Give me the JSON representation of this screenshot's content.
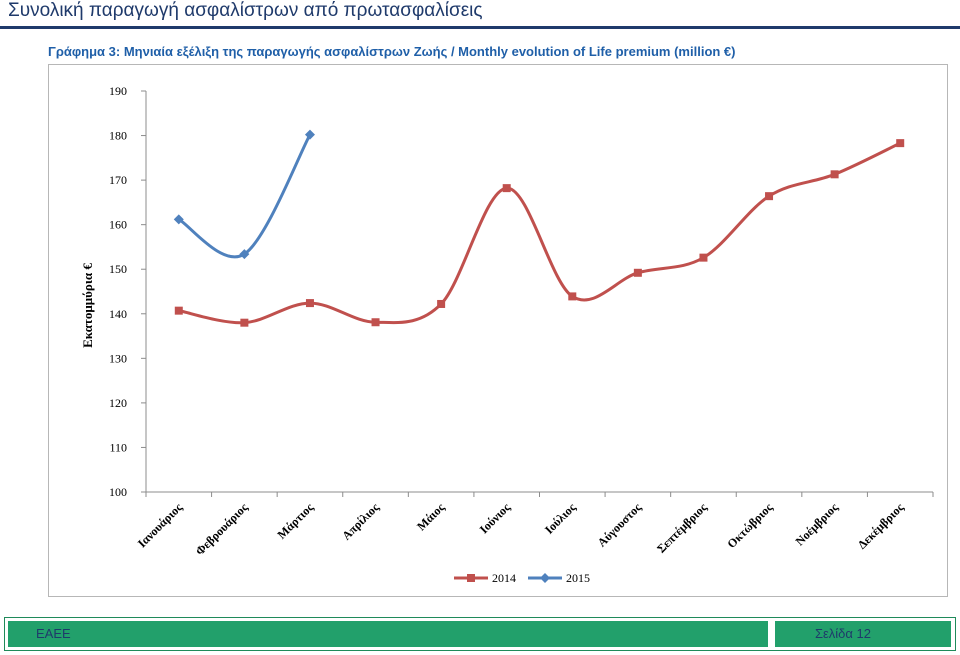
{
  "header": {
    "title": "Συνολική παραγωγή ασφαλίστρων από πρωτασφαλίσεις"
  },
  "chart_data": {
    "type": "line",
    "title": "Γράφημα 3: Μηνιαία εξέλιξη της παραγωγής ασφαλίστρων Ζωής / Monthly evolution of Life premium (million €)",
    "ylabel": "Εκατομμύρια €",
    "xlabel": "",
    "ylim": [
      100,
      190
    ],
    "yticks": [
      100,
      110,
      120,
      130,
      140,
      150,
      160,
      170,
      180,
      190
    ],
    "grid": false,
    "legend": "bottom",
    "categories": [
      "Ιανουάριος",
      "Φεβρουάριος",
      "Μάρτιος",
      "Απρίλιος",
      "Μάιος",
      "Ιούνιος",
      "Ιούλιος",
      "Αύγουστος",
      "Σεπτέμβριος",
      "Οκτώβριος",
      "Νοέμβριος",
      "Δεκέμβριος"
    ],
    "series": [
      {
        "name": "2014",
        "color": "#c0504d",
        "marker": "square",
        "values": [
          140.7,
          138.0,
          142.4,
          138.1,
          142.2,
          168.2,
          143.9,
          149.2,
          152.6,
          166.4,
          171.3,
          178.3
        ]
      },
      {
        "name": "2015",
        "color": "#4f81bd",
        "marker": "diamond",
        "values": [
          161.2,
          153.4,
          180.2,
          null,
          null,
          null,
          null,
          null,
          null,
          null,
          null,
          null
        ]
      }
    ]
  },
  "footer": {
    "org": "ΕΑΕΕ",
    "page": "Σελίδα 12",
    "accent": "#22a06b"
  }
}
